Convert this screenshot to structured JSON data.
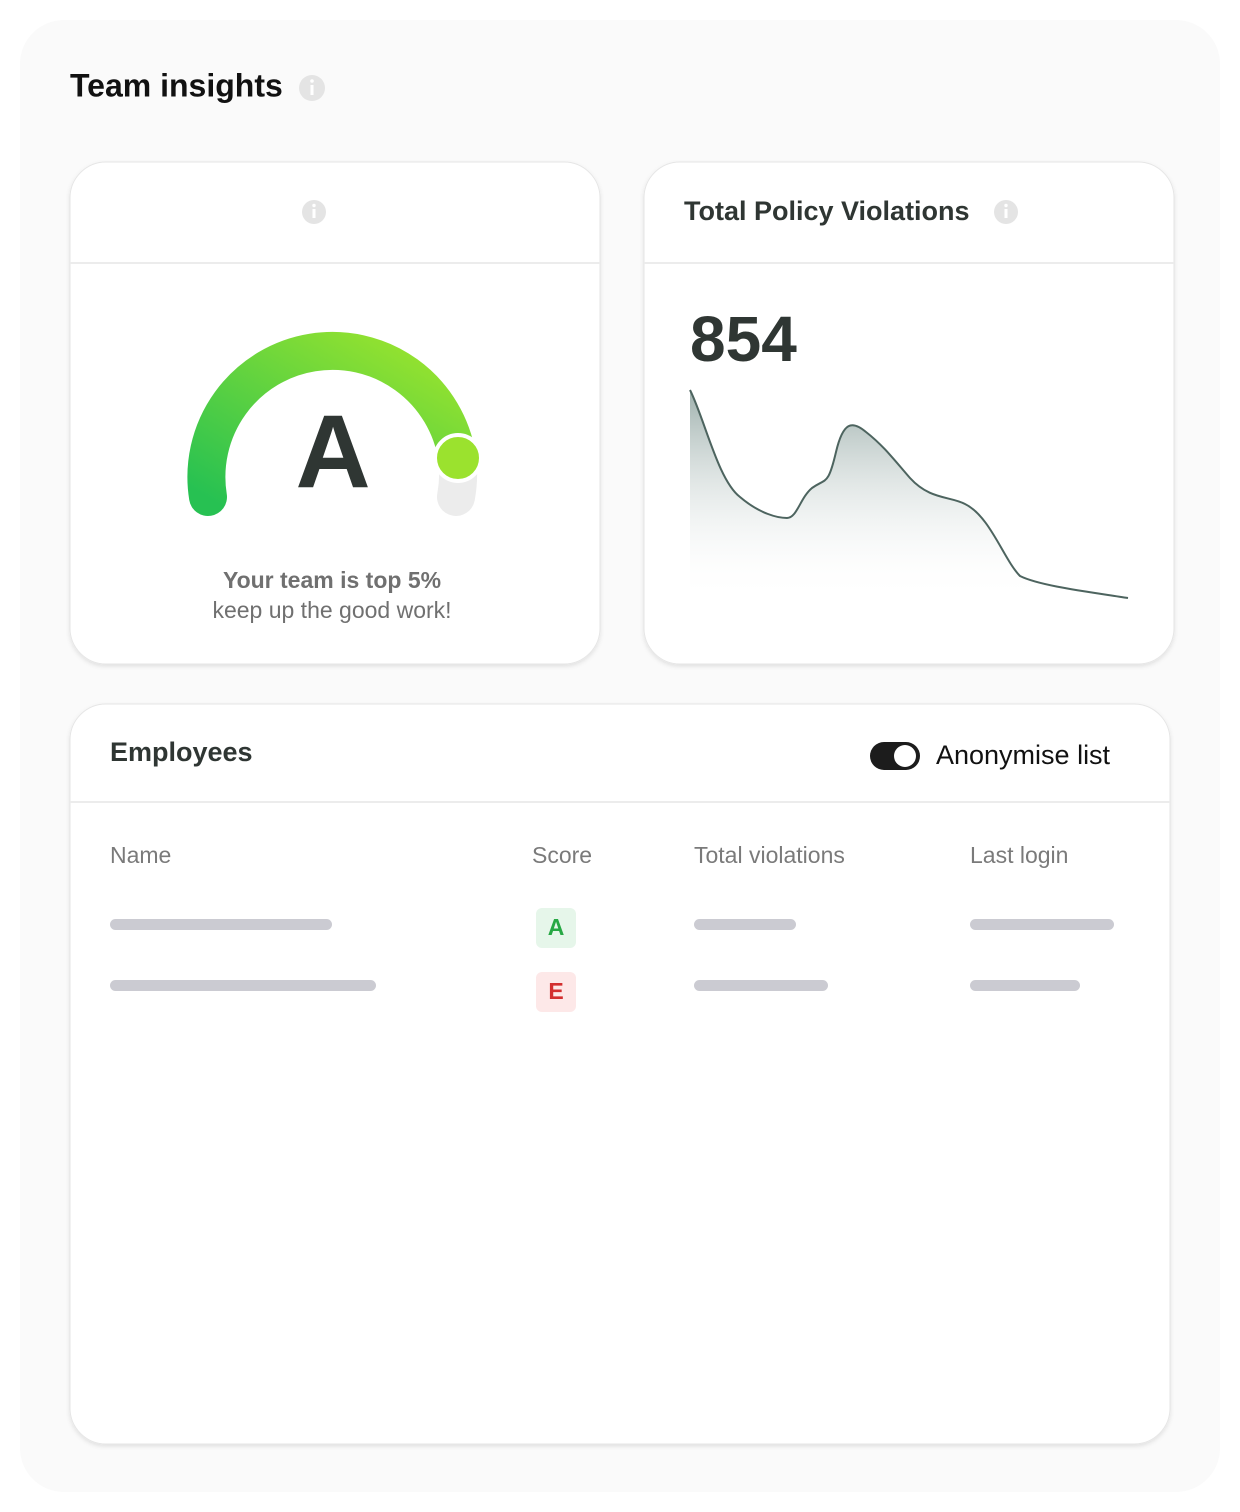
{
  "header": {
    "title": "Team insights"
  },
  "score_card": {
    "grade": "A",
    "message": "Your team is top 5%",
    "submessage": "keep up the good work!"
  },
  "violations_card": {
    "title": "Total Policy Violations",
    "total": 854
  },
  "employees": {
    "title": "Employees",
    "toggle_label": "Anonymise list",
    "columns": [
      "Name",
      "Score",
      "Total violations",
      "Last login"
    ],
    "rows": [
      {
        "score": "A"
      },
      {
        "score": "E"
      }
    ]
  }
}
